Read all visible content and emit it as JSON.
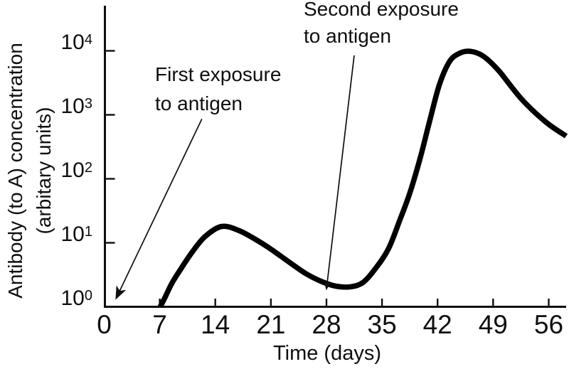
{
  "figure": {
    "bg_color": "#ffffff",
    "ink_color": "#0f0f0f"
  },
  "chart_data": {
    "type": "line",
    "title": "",
    "xlabel": "Time (days)",
    "ylabel_line1": "Antibody (to A) concentration",
    "ylabel_line2": "(arbitary units)",
    "x_axis": {
      "ticks": [
        0,
        7,
        14,
        21,
        28,
        35,
        42,
        49,
        56
      ],
      "range_days": [
        0,
        58
      ]
    },
    "y_axis": {
      "scale": "log10",
      "range": [
        1,
        10000
      ],
      "ticks": [
        {
          "base": "10",
          "exp": "4",
          "value": 10000
        },
        {
          "base": "10",
          "exp": "3",
          "value": 1000
        },
        {
          "base": "10",
          "exp": "2",
          "value": 100
        },
        {
          "base": "10",
          "exp": "1",
          "value": 10
        },
        {
          "base": "10",
          "exp": "0",
          "value": 1
        }
      ]
    },
    "grid": "off",
    "legend": "none",
    "series": [
      {
        "name": "antibody-concentration",
        "points_day_conc": [
          [
            7.05,
            1.0
          ],
          [
            7.6,
            1.35
          ],
          [
            8.5,
            2.3
          ],
          [
            9.6,
            3.8
          ],
          [
            11.1,
            7.2
          ],
          [
            12.7,
            12.5
          ],
          [
            14.8,
            18
          ],
          [
            17.0,
            15.5
          ],
          [
            19.5,
            10.5
          ],
          [
            21.1,
            7.8
          ],
          [
            23.4,
            4.9
          ],
          [
            25.4,
            3.3
          ],
          [
            27.5,
            2.45
          ],
          [
            29.2,
            2.1
          ],
          [
            31.0,
            2.05
          ],
          [
            32.6,
            2.4
          ],
          [
            34.2,
            4.0
          ],
          [
            35.8,
            8.0
          ],
          [
            37.2,
            22
          ],
          [
            38.5,
            60
          ],
          [
            39.8,
            210
          ],
          [
            41.0,
            800
          ],
          [
            42.2,
            2900
          ],
          [
            43.5,
            6800
          ],
          [
            44.8,
            9200
          ],
          [
            46.2,
            9800
          ],
          [
            47.8,
            8200
          ],
          [
            49.7,
            4900
          ],
          [
            52.6,
            1750
          ],
          [
            55.7,
            760
          ],
          [
            58.2,
            465
          ]
        ],
        "first_peak": {
          "day": 15,
          "conc": 18
        },
        "trough": {
          "day": 30,
          "conc": 2
        },
        "second_peak": {
          "day": 46,
          "conc": 10000
        }
      }
    ],
    "annotations": [
      {
        "id": "first-exposure",
        "line1": "First exposure",
        "line2": "to antigen",
        "arrow": {
          "from_day": 12.3,
          "from_conc": 860,
          "to_day": 1.5,
          "to_conc": 1.35
        }
      },
      {
        "id": "second-exposure",
        "line1": "Second exposure",
        "line2": "to antigen",
        "arrow": {
          "from_day": 31.5,
          "from_conc": 8500,
          "to_day": 28.0,
          "to_conc": 1.9
        }
      }
    ]
  }
}
